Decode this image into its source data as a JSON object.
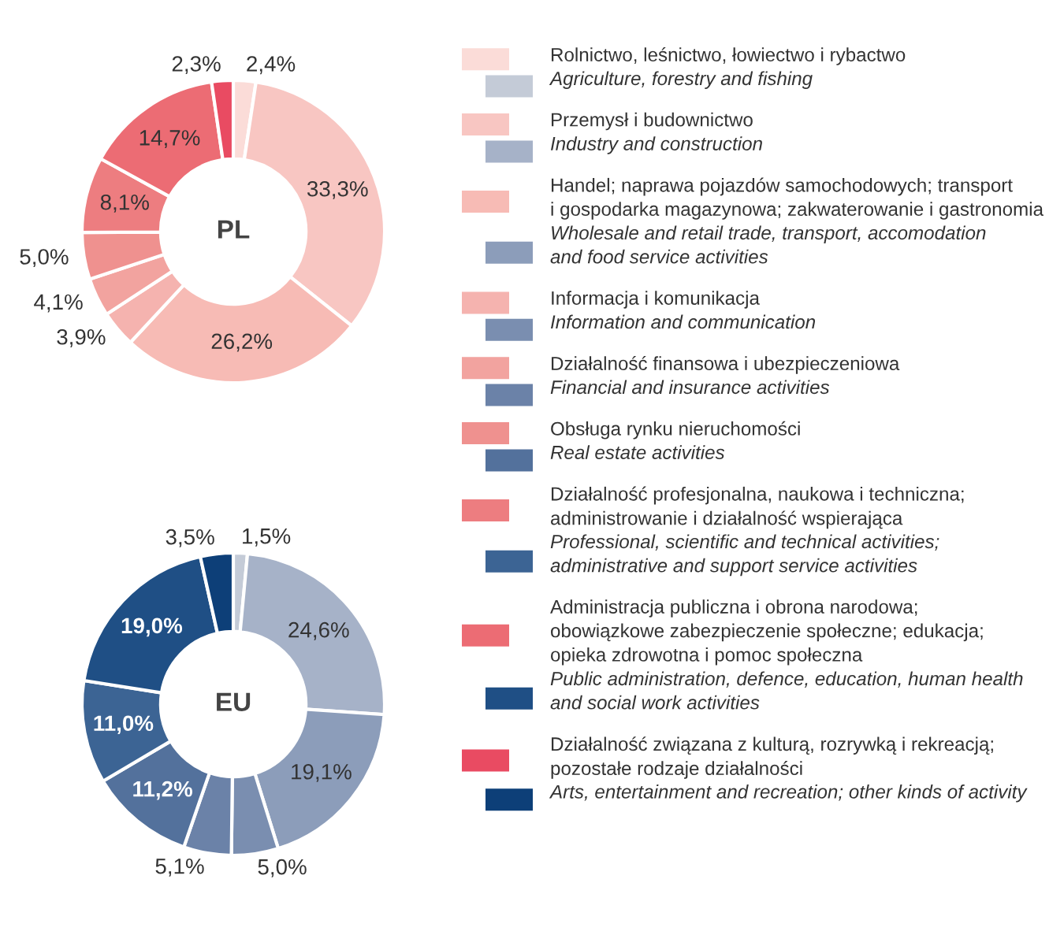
{
  "chart_data": [
    {
      "type": "donut",
      "title": "PL",
      "legend": "right",
      "categories": [
        "Rolnictwo, leśnictwo, łowiectwo i rybactwo",
        "Przemysł i budownictwo",
        "Handel; naprawa pojazdów samochodowych; transport\ni gospodarka magazynowa; zakwaterowanie i gastronomia",
        "Informacja i komunikacja",
        "Działalność finansowa i ubezpieczeniowa",
        "Obsługa rynku nieruchomości",
        "Działalność profesjonalna, naukowa i techniczna;\nadministrowanie i działalność wspierająca",
        "Administracja publiczna i obrona narodowa;\nobowiązkowe zabezpieczenie społeczne; edukacja;\nopieka zdrowotna i pomoc społeczna",
        "Działalność związana z kulturą, rozrywką i rekreacją;\npozostałe rodzaje działalności"
      ],
      "values": [
        2.4,
        33.3,
        26.2,
        3.9,
        4.1,
        5.0,
        8.1,
        14.7,
        2.3
      ],
      "value_labels": [
        "2,4%",
        "33,3%",
        "26,2%",
        "3,9%",
        "4,1%",
        "5,0%",
        "8,1%",
        "14,7%",
        "2,3%"
      ],
      "colors": [
        "#fbdcd8",
        "#f8c6c2",
        "#f7bbb5",
        "#f5b3af",
        "#f2a39f",
        "#ef918f",
        "#ed7d80",
        "#ec6c74",
        "#e94b62"
      ]
    },
    {
      "type": "donut",
      "title": "EU",
      "legend": "right",
      "categories": [
        "Agriculture, forestry and fishing",
        "Industry and construction",
        "Wholesale and retail trade, transport, accomodation\nand food service activities",
        "Information and communication",
        "Financial and insurance activities",
        "Real estate activities",
        "Professional, scientific and technical activities;\nadministrative and support service activities",
        "Public administration, defence, education, human health\nand social work activities",
        "Arts, entertainment and recreation; other kinds of activity"
      ],
      "values": [
        1.5,
        24.6,
        19.1,
        5.0,
        5.1,
        11.2,
        11.0,
        19.0,
        3.5
      ],
      "value_labels": [
        "1,5%",
        "24,6%",
        "19,1%",
        "5,0%",
        "5,1%",
        "11,2%",
        "11,0%",
        "19,0%",
        "3,5%"
      ],
      "colors": [
        "#c4cbd7",
        "#a6b2c8",
        "#8c9dba",
        "#7a8eb0",
        "#6b82a8",
        "#53719c",
        "#3c6494",
        "#1f4f85",
        "#0d3f78"
      ]
    }
  ]
}
